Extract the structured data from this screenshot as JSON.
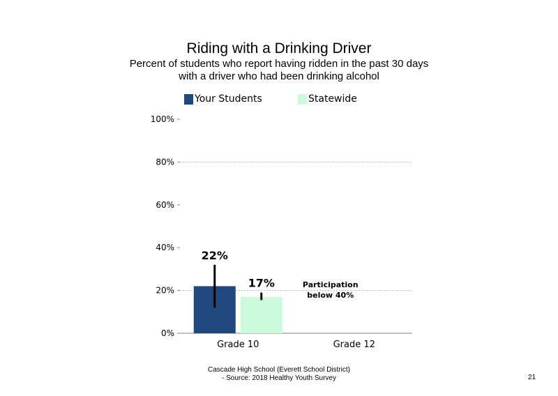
{
  "chart_data": {
    "type": "bar",
    "title": "Riding with a Drinking Driver",
    "subtitle_lines": [
      "Percent of students who report having ridden in the past 30 days",
      "with a driver who had been drinking alcohol"
    ],
    "categories": [
      "Grade 10",
      "Grade 12"
    ],
    "series": [
      {
        "name": "Your Students",
        "color": "#1f497d",
        "values": [
          22,
          null
        ],
        "error_low": [
          12,
          null
        ],
        "error_high": [
          32,
          null
        ],
        "labels": [
          "22%",
          ""
        ]
      },
      {
        "name": "Statewide",
        "color": "#ccf8dc",
        "values": [
          17,
          null
        ],
        "error_low": [
          15.5,
          null
        ],
        "error_high": [
          19,
          null
        ],
        "labels": [
          "17%",
          ""
        ]
      }
    ],
    "ylim": [
      0,
      100
    ],
    "yticks": [
      0,
      20,
      40,
      60,
      80,
      100
    ],
    "ytick_labels": [
      "0%",
      "20%",
      "40%",
      "60%",
      "80%",
      "100%"
    ],
    "grid": "dashed horizontal at 20%, 80%",
    "legend_position": "top",
    "annotation": {
      "category": "Grade 12",
      "lines": [
        "Participation",
        "below 40%"
      ]
    }
  },
  "footer": {
    "line1": "Cascade High School (Everett School District)",
    "line2": "- Source: 2018 Healthy  Youth Survey"
  },
  "page_number": "21"
}
